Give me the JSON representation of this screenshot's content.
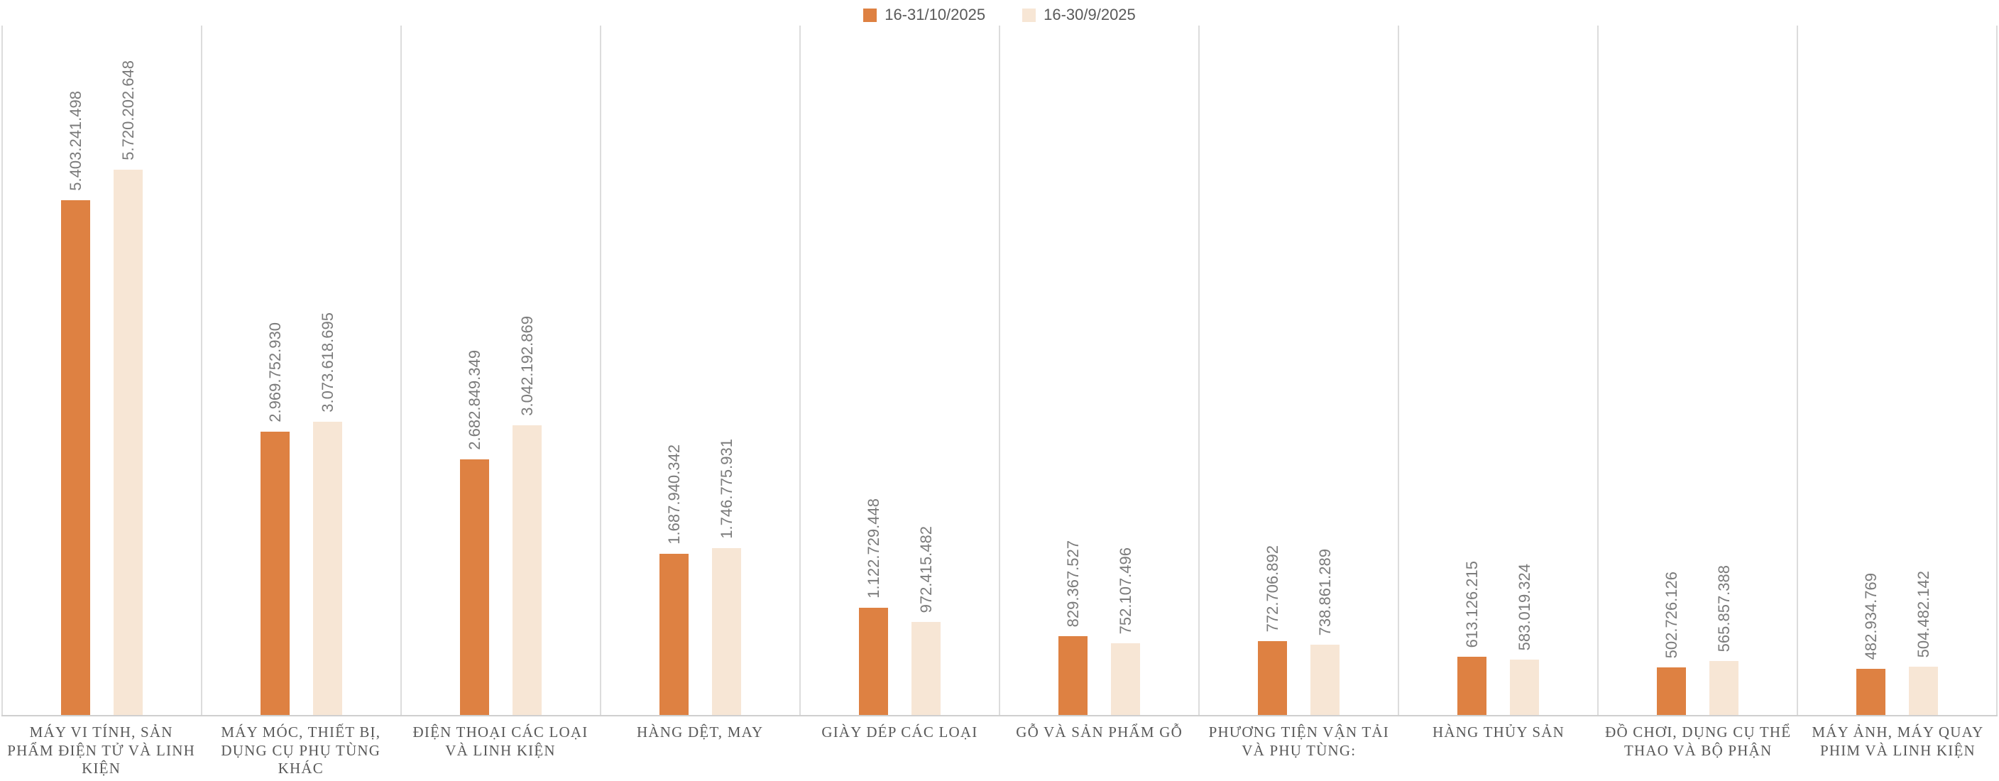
{
  "legend": {
    "position": "top",
    "items": [
      {
        "label": "16-31/10/2025",
        "color": "#DE8142"
      },
      {
        "label": "16-30/9/2025",
        "color": "#F7E6D5"
      }
    ]
  },
  "chart_data": {
    "type": "bar",
    "orientation": "vertical",
    "grid": "vertical-category-separators",
    "grid_color": "#DCDCDC",
    "axis_line_color": "#CFCFCF",
    "value_label_color": "#7B7B7B",
    "category_label_color": "#595959",
    "ylim": [
      0,
      6000000000
    ],
    "legend_position": "top",
    "categories": [
      "MÁY VI TÍNH, SẢN PHẨM ĐIỆN TỬ VÀ LINH KIỆN",
      "MÁY MÓC, THIẾT BỊ, DỤNG CỤ PHỤ TÙNG KHÁC",
      "ĐIỆN THOẠI CÁC LOẠI VÀ LINH KIỆN",
      "HÀNG DỆT, MAY",
      "GIÀY DÉP CÁC LOẠI",
      "GỖ VÀ SẢN PHẨM GỖ",
      "PHƯƠNG TIỆN VẬN TẢI VÀ PHỤ TÙNG:",
      "HÀNG THỦY SẢN",
      "ĐỒ CHƠI, DỤNG CỤ THỂ THAO VÀ BỘ PHẬN",
      "MÁY ẢNH, MÁY QUAY PHIM VÀ LINH KIỆN"
    ],
    "series": [
      {
        "name": "16-31/10/2025",
        "color": "#DE8142",
        "values": [
          5403241498,
          2969752930,
          2682849349,
          1687940342,
          1122729448,
          829367527,
          772706892,
          613126215,
          502726126,
          482934769
        ],
        "labels": [
          "5.403.241.498",
          "2.969.752.930",
          "2.682.849.349",
          "1.687.940.342",
          "1.122.729.448",
          "829.367.527",
          "772.706.892",
          "613.126.215",
          "502.726.126",
          "482.934.769"
        ]
      },
      {
        "name": "16-30/9/2025",
        "color": "#F7E6D5",
        "values": [
          5720202648,
          3073618695,
          3042192869,
          1746775931,
          972415482,
          752107496,
          738861289,
          583019324,
          565857388,
          504482142
        ],
        "labels": [
          "5.720.202.648",
          "3.073.618.695",
          "3.042.192.869",
          "1.746.775.931",
          "972.415.482",
          "752.107.496",
          "738.861.289",
          "583.019.324",
          "565.857.388",
          "504.482.142"
        ]
      }
    ]
  }
}
